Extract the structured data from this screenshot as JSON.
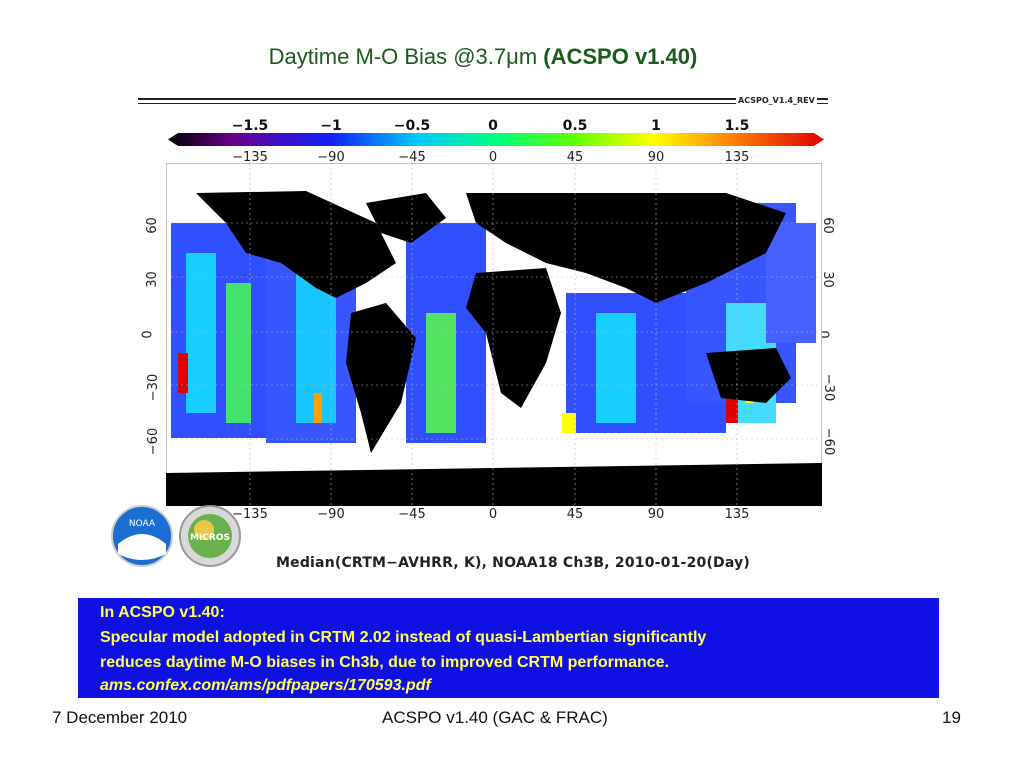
{
  "slide": {
    "title_plain": "Daytime M-O Bias @3.7μm",
    "title_bold": "(ACSPO v1.40)",
    "rev_tag": "ACSPO_V1.4_REV",
    "colorbar_ticks": [
      "−1.5",
      "−1",
      "−0.5",
      "0",
      "0.5",
      "1",
      "1.5"
    ],
    "lon_ticks": [
      "−135",
      "−90",
      "−45",
      "0",
      "45",
      "90",
      "135"
    ],
    "lat_ticks": [
      "60",
      "30",
      "0",
      "−30",
      "−60"
    ],
    "caption": "Median(CRTM−AVHRR, K), NOAA18 Ch3B, 2010-01-20(Day)",
    "logo_left_text": "NOAA",
    "logo_right_text": "MICROS",
    "info_box": {
      "line1": "In ACSPO v1.40:",
      "line2": "Specular model adopted in CRTM 2.02 instead of quasi-Lambertian significantly",
      "line3": "reduces daytime M-O biases in Ch3b, due to improved CRTM performance.",
      "line4": "ams.confex.com/ams/pdfpapers/170593.pdf"
    },
    "footer": {
      "date": "7 December 2010",
      "center": "ACSPO v1.40 (GAC & FRAC)",
      "page": "19"
    },
    "colors": {
      "title_green": "#1a5a1a",
      "box_blue": "#1010e6",
      "box_text_yellow": "#ffff55"
    }
  }
}
